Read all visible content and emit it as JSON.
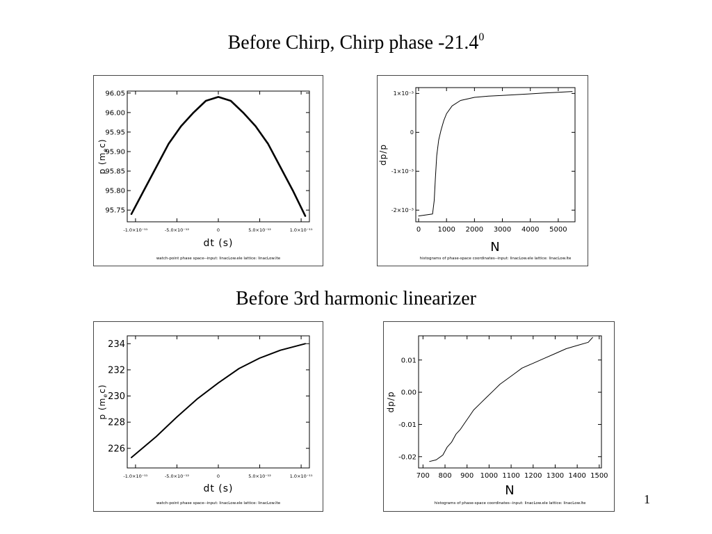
{
  "slide": {
    "title_main": "Before Chirp, Chirp phase -21.4",
    "title_sup": "0",
    "subtitle": "Before  3rd harmonic linearizer",
    "page_number": "1"
  },
  "chart_data": [
    {
      "id": "c1",
      "type": "scatter",
      "ylabel": "p  (m",
      "ylabel_sub": "e",
      "ylabel_end": "c)",
      "xlabel": "dt  (s)",
      "footer": "watch-point phase space--input: linacLow.ele   lattice: linacLow.lte",
      "xlim": [
        -1.1e-11,
        1.1e-11
      ],
      "ylim": [
        95.72,
        96.055
      ],
      "xticks": [
        -1e-11,
        -5e-12,
        0,
        5e-12,
        1e-11
      ],
      "xtick_labels": [
        "-1.0×10⁻¹¹",
        "-5.0×10⁻¹²",
        "0",
        "5.0×10⁻¹²",
        "1.0×10⁻¹¹"
      ],
      "yticks": [
        95.75,
        95.8,
        95.85,
        95.9,
        95.95,
        96.0,
        96.05
      ],
      "ytick_labels": [
        "95.75",
        "95.80",
        "95.85",
        "95.90",
        "95.95",
        "96.00",
        "96.05"
      ],
      "x": [
        -1.05e-11,
        -9e-12,
        -7.5e-12,
        -6e-12,
        -4.5e-12,
        -3e-12,
        -1.5e-12,
        0,
        1.5e-12,
        3e-12,
        4.5e-12,
        6e-12,
        7.5e-12,
        9e-12,
        1.05e-11
      ],
      "y": [
        95.74,
        95.8,
        95.86,
        95.92,
        95.965,
        96.0,
        96.03,
        96.04,
        96.03,
        96.0,
        95.965,
        95.92,
        95.86,
        95.8,
        95.735
      ]
    },
    {
      "id": "c2",
      "type": "line",
      "ylabel": "dp/p",
      "xlabel": "N",
      "footer": "histograms of phase-space coordinates--input: linacLow.ele   lattice: linacLow.lte",
      "xlim": [
        -100,
        5600
      ],
      "ylim": [
        -0.0023,
        0.00115
      ],
      "xticks": [
        0,
        1000,
        2000,
        3000,
        4000,
        5000
      ],
      "xtick_labels": [
        "0",
        "1000",
        "2000",
        "3000",
        "4000",
        "5000"
      ],
      "yticks": [
        -0.002,
        -0.001,
        0,
        0.001
      ],
      "ytick_labels": [
        "-2×10⁻³",
        "-1×10⁻³",
        "0",
        "1×10⁻³"
      ],
      "x": [
        0,
        500,
        560,
        600,
        650,
        720,
        800,
        900,
        1000,
        1200,
        1500,
        2000,
        2500,
        3000,
        3500,
        4000,
        4500,
        5000,
        5500
      ],
      "y": [
        -0.00215,
        -0.0021,
        -0.00175,
        -0.0012,
        -0.0006,
        -0.0002,
        5e-05,
        0.0003,
        0.00048,
        0.00068,
        0.00082,
        0.0009,
        0.00093,
        0.00095,
        0.00097,
        0.00099,
        0.00101,
        0.00103,
        0.00105
      ]
    },
    {
      "id": "c3",
      "type": "scatter",
      "ylabel": "p  (m",
      "ylabel_sub": "e",
      "ylabel_end": "c)",
      "xlabel": "dt  (s)",
      "footer": "watch-point phase space--input: linacLow.ele   lattice: linacLow.lte",
      "xlim": [
        -1.1e-11,
        1.1e-11
      ],
      "ylim": [
        224.5,
        234.6
      ],
      "xticks": [
        -1e-11,
        -5e-12,
        0,
        5e-12,
        1e-11
      ],
      "xtick_labels": [
        "-1.0×10⁻¹¹",
        "-5.0×10⁻¹²",
        "0",
        "5.0×10⁻¹²",
        "1.0×10⁻¹¹"
      ],
      "yticks": [
        226,
        228,
        230,
        232,
        234
      ],
      "ytick_labels": [
        "226",
        "228",
        "230",
        "232",
        "234"
      ],
      "x": [
        -1.05e-11,
        -7.5e-12,
        -5e-12,
        -2.5e-12,
        0,
        2.5e-12,
        5e-12,
        7.5e-12,
        1.05e-11
      ],
      "y": [
        225.3,
        226.9,
        228.4,
        229.8,
        231.0,
        232.1,
        232.9,
        233.5,
        234.0
      ]
    },
    {
      "id": "c4",
      "type": "line",
      "ylabel": "dp/p",
      "xlabel": "N",
      "footer": "histograms of phase-space coordinates--input: linacLow.ele   lattice: linacLow.lte",
      "xlim": [
        680,
        1510
      ],
      "ylim": [
        -0.0235,
        0.0175
      ],
      "xticks": [
        700,
        800,
        900,
        1000,
        1100,
        1200,
        1300,
        1400,
        1500
      ],
      "xtick_labels": [
        "700",
        "800",
        "900",
        "1000",
        "1100",
        "1200",
        "1300",
        "1400",
        "1500"
      ],
      "yticks": [
        -0.02,
        -0.01,
        0.0,
        0.01
      ],
      "ytick_labels": [
        "-0.02",
        "-0.01",
        "0.00",
        "0.01"
      ],
      "x": [
        730,
        760,
        790,
        810,
        830,
        850,
        870,
        890,
        910,
        930,
        960,
        990,
        1020,
        1050,
        1080,
        1110,
        1150,
        1200,
        1250,
        1300,
        1350,
        1400,
        1450,
        1470
      ],
      "y": [
        -0.0215,
        -0.021,
        -0.0195,
        -0.017,
        -0.0155,
        -0.013,
        -0.0115,
        -0.0095,
        -0.0075,
        -0.0055,
        -0.0035,
        -0.0015,
        0.0005,
        0.0025,
        0.004,
        0.0055,
        0.0075,
        0.009,
        0.0105,
        0.012,
        0.0135,
        0.0145,
        0.0155,
        0.017
      ]
    }
  ]
}
